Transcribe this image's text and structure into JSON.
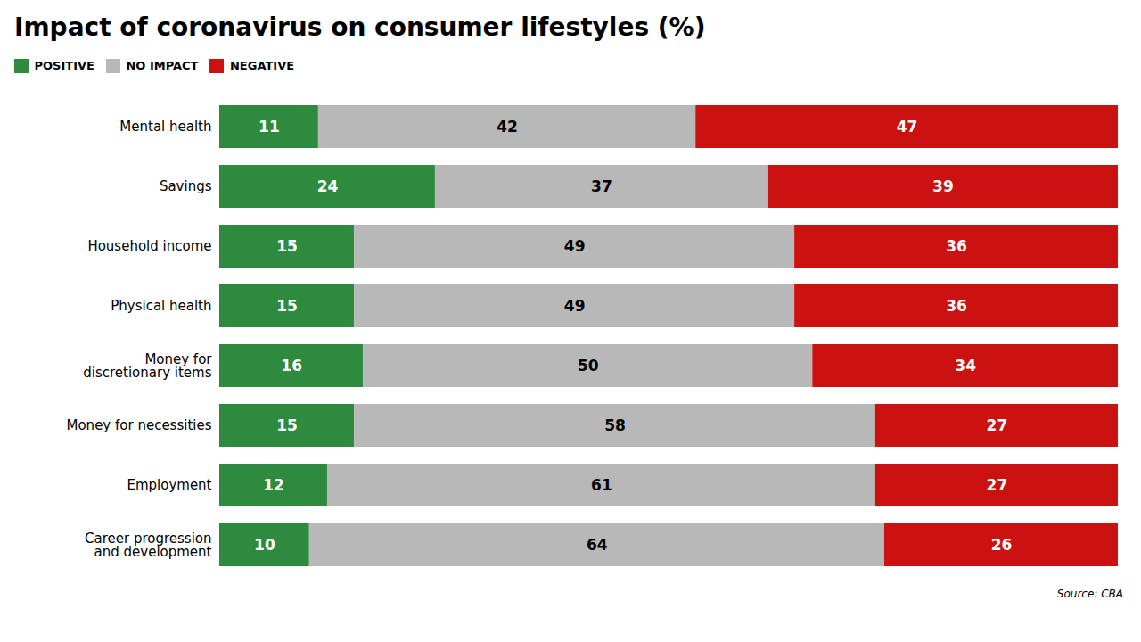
{
  "chart_data": {
    "type": "bar",
    "orientation": "horizontal",
    "stacked": true,
    "data_labels": true,
    "title": "Impact of coronavirus on consumer lifestyles (%)",
    "annotations": [
      "Source: CBA"
    ],
    "categories": [
      "Mental health",
      "Savings",
      "Household income",
      "Physical health",
      "Money for\ndiscretionary items",
      "Money for necessities",
      "Employment",
      "Career progression\nand development"
    ],
    "series": [
      {
        "name": "POSITIVE",
        "color": "#2e8b3e",
        "values": [
          11,
          24,
          15,
          15,
          16,
          15,
          12,
          10
        ]
      },
      {
        "name": "NO IMPACT",
        "color": "#b8b8b8",
        "values": [
          42,
          37,
          49,
          49,
          50,
          58,
          61,
          64
        ]
      },
      {
        "name": "NEGATIVE",
        "color": "#cc1111",
        "values": [
          47,
          39,
          36,
          36,
          34,
          27,
          27,
          26
        ]
      }
    ],
    "xlim": [
      0,
      100
    ],
    "tick_labels": "y",
    "grid": false,
    "legend": "upper left"
  }
}
